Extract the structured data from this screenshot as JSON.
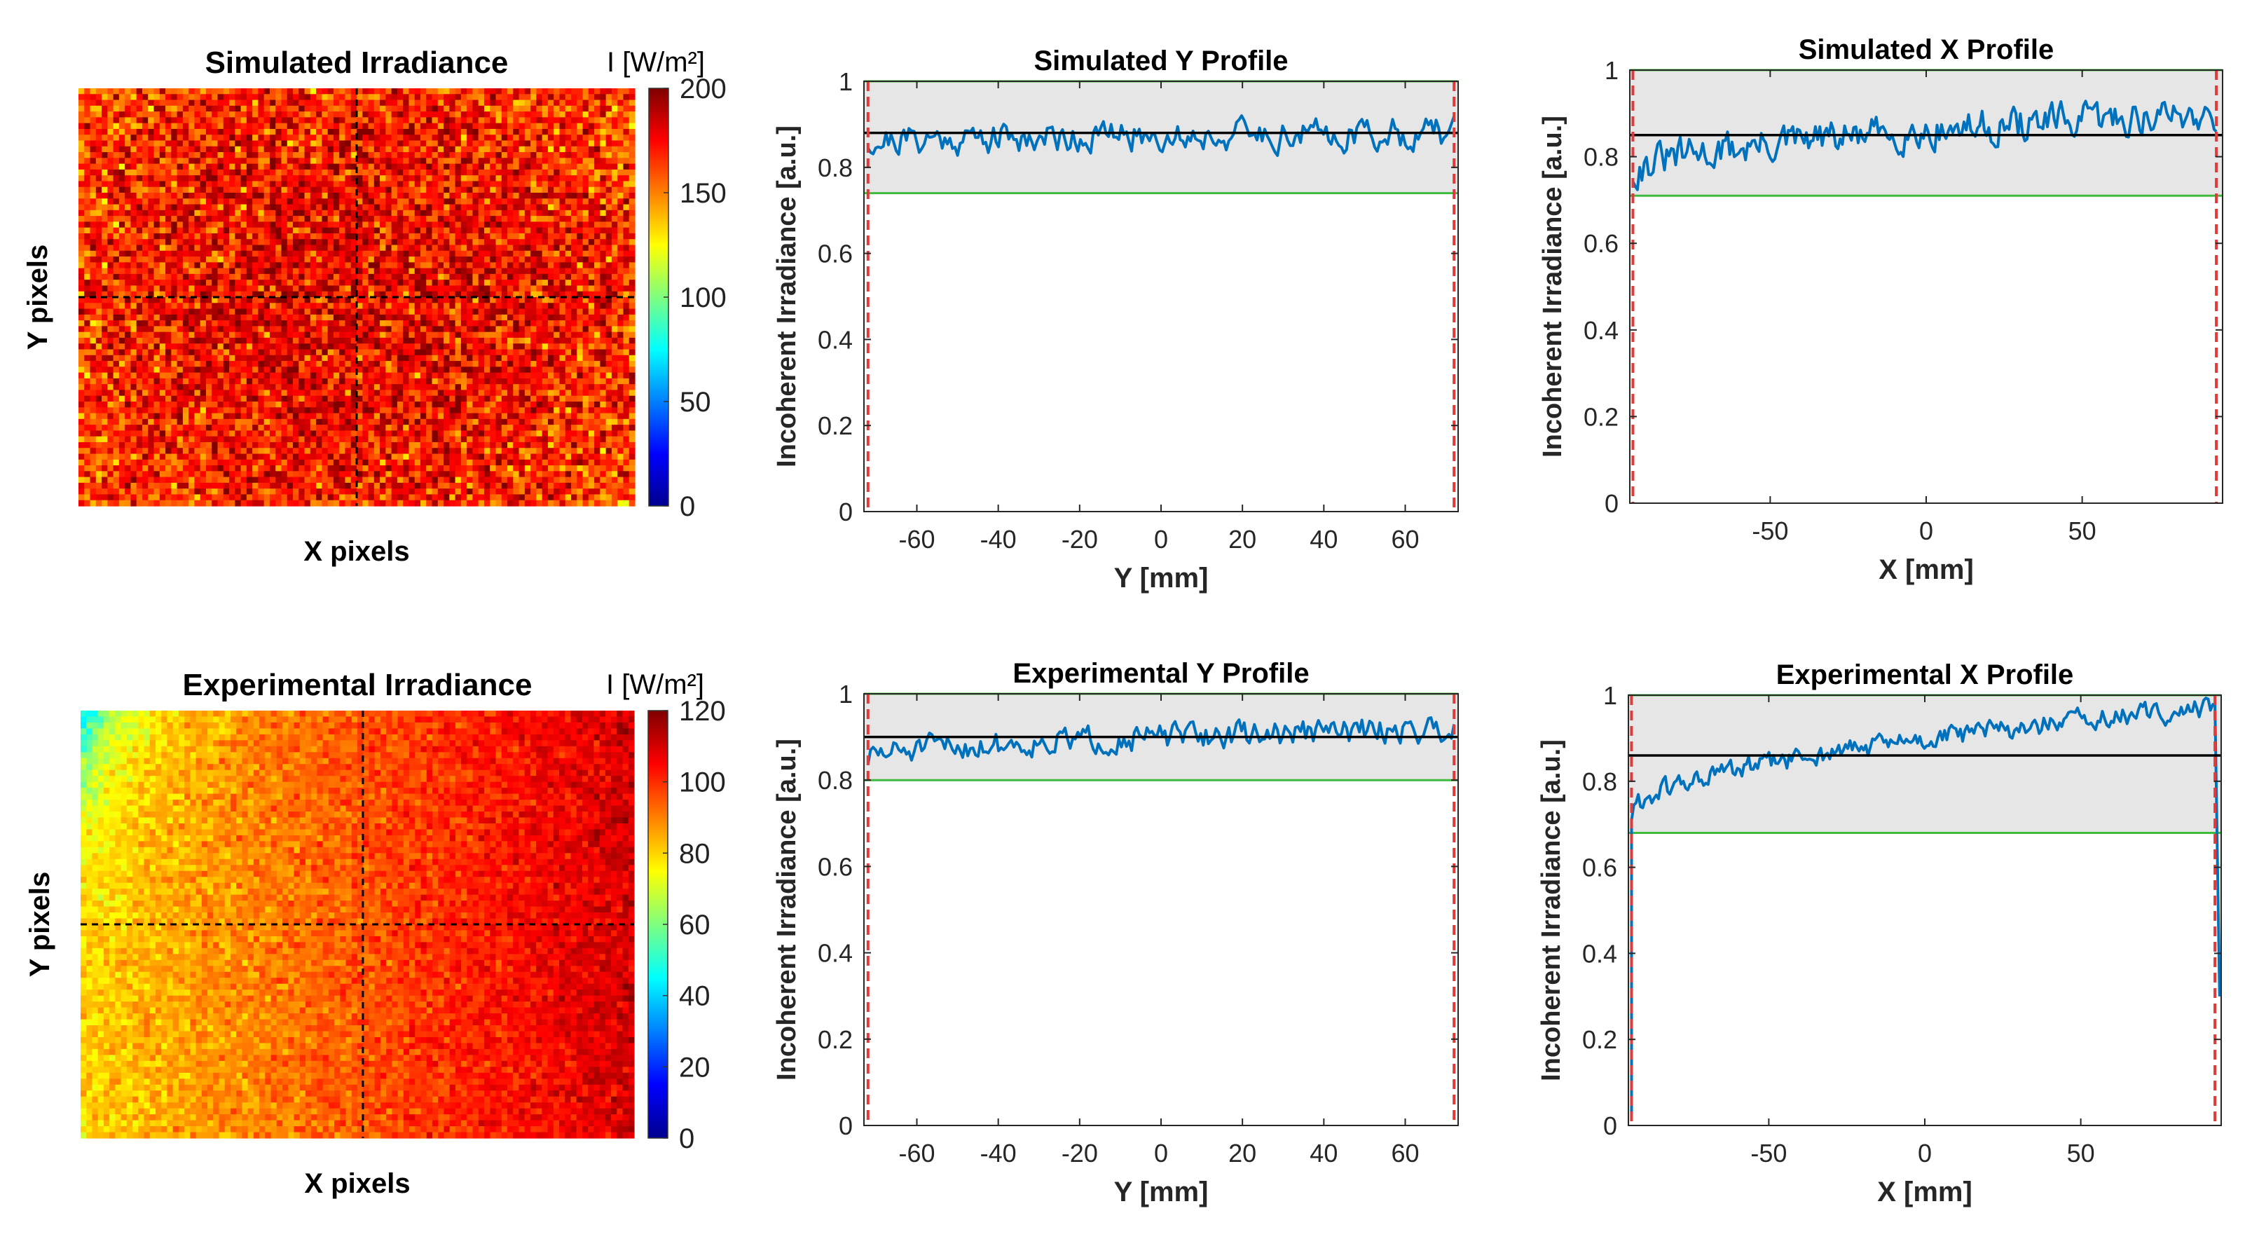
{
  "chart_data": [
    {
      "id": "sim_map",
      "type": "heatmap",
      "title": "Simulated Irradiance",
      "xlabel": "X pixels",
      "ylabel": "Y pixels",
      "colorbar": {
        "label": "I [W/m²]",
        "ticks": [
          0,
          50,
          100,
          150,
          200
        ],
        "range": [
          0,
          200
        ]
      },
      "mean_level": 168,
      "noise": 32,
      "gradient_left_to_right": 0,
      "crosshair": {
        "x_fraction": 0.5,
        "y_fraction": 0.5
      },
      "colormap": "jet"
    },
    {
      "id": "sim_y",
      "type": "line",
      "title": "Simulated Y Profile",
      "xlabel": "Y [mm]",
      "ylabel": "Incoherent Irradiance [a.u.]",
      "xlim": [
        -73,
        73
      ],
      "ylim": [
        0,
        1
      ],
      "xticks": [
        -60,
        -40,
        -20,
        0,
        20,
        40,
        60
      ],
      "yticks": [
        0,
        0.2,
        0.4,
        0.6,
        0.8,
        1
      ],
      "mean_line": 0.88,
      "band": [
        0.74,
        1.0
      ],
      "profile_trend": [
        0.86,
        0.88
      ],
      "profile_noise": 0.035,
      "edge_lines": [
        -72,
        72
      ],
      "series_color": "#0072BD"
    },
    {
      "id": "sim_x",
      "type": "line",
      "title": "Simulated X Profile",
      "xlabel": "X [mm]",
      "ylabel": "Incoherent Irradiance [a.u.]",
      "xlim": [
        -95,
        95
      ],
      "ylim": [
        0,
        1
      ],
      "xticks": [
        -50,
        0,
        50
      ],
      "yticks": [
        0,
        0.2,
        0.4,
        0.6,
        0.8,
        1
      ],
      "mean_line": 0.85,
      "band": [
        0.71,
        1.0
      ],
      "profile_trend": [
        0.76,
        0.9
      ],
      "profile_noise": 0.04,
      "edge_lines": [
        -94,
        93
      ],
      "series_color": "#0072BD"
    },
    {
      "id": "exp_map",
      "type": "heatmap",
      "title": "Experimental Irradiance",
      "xlabel": "X pixels",
      "ylabel": "Y pixels",
      "colorbar": {
        "label": "I [W/m²]",
        "ticks": [
          0,
          20,
          40,
          60,
          80,
          100,
          120
        ],
        "range": [
          0,
          120
        ]
      },
      "mean_level": 95,
      "noise": 8,
      "gradient_left_to_right": 30,
      "crosshair": {
        "x_fraction": 0.51,
        "y_fraction": 0.5
      },
      "colormap": "jet"
    },
    {
      "id": "exp_y",
      "type": "line",
      "title": "Experimental Y Profile",
      "xlabel": "Y [mm]",
      "ylabel": "Incoherent Irradiance [a.u.]",
      "xlim": [
        -73,
        73
      ],
      "ylim": [
        0,
        1
      ],
      "xticks": [
        -60,
        -40,
        -20,
        0,
        20,
        40,
        60
      ],
      "yticks": [
        0,
        0.2,
        0.4,
        0.6,
        0.8,
        1
      ],
      "mean_line": 0.9,
      "band": [
        0.8,
        1.0
      ],
      "profile_trend": [
        0.85,
        0.92
      ],
      "profile_noise": 0.03,
      "edge_lines": [
        -72,
        72
      ],
      "series_color": "#0072BD"
    },
    {
      "id": "exp_x",
      "type": "line",
      "title": "Experimental X Profile",
      "xlabel": "X [mm]",
      "ylabel": "Incoherent Irradiance [a.u.]",
      "xlim": [
        -95,
        95
      ],
      "ylim": [
        0,
        1
      ],
      "xticks": [
        -50,
        0,
        50
      ],
      "yticks": [
        0,
        0.2,
        0.4,
        0.6,
        0.8,
        1
      ],
      "mean_line": 0.86,
      "band": [
        0.68,
        1.0
      ],
      "profile_trend": [
        0.72,
        0.97
      ],
      "profile_noise": 0.025,
      "edge_lines": [
        -94,
        93
      ],
      "edge_drop": true,
      "series_color": "#0072BD"
    }
  ],
  "colors": {
    "band_fill": "#e6e6e6",
    "band_edge": "#3dbb3d",
    "mean_line": "#000000",
    "edge_line": "#e03a3a",
    "crosshair": "#000000"
  }
}
